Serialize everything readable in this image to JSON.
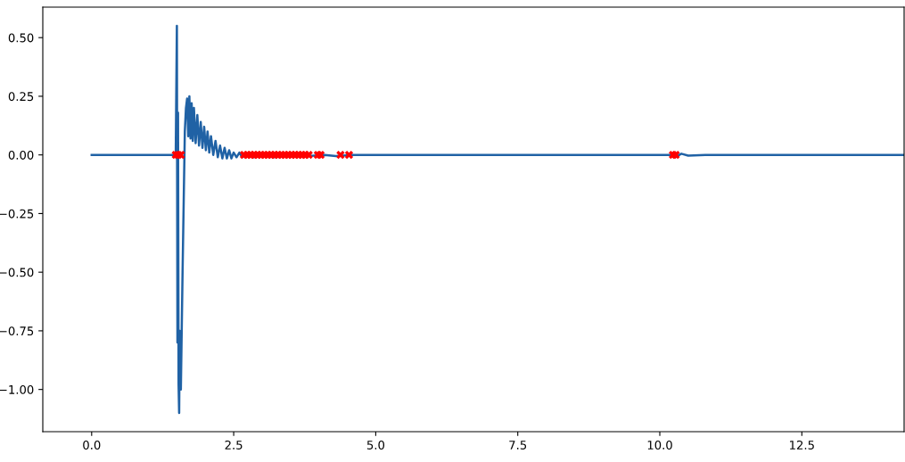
{
  "chart_data": {
    "type": "line",
    "xlim": [
      -0.86,
      14.3
    ],
    "ylim": [
      -1.18,
      0.63
    ],
    "xticks": [
      {
        "value": 0,
        "label": "0.0"
      },
      2.5,
      {
        "value": 5,
        "label": "5.0"
      },
      7.5,
      {
        "value": 10,
        "label": "10.0"
      },
      12.5
    ],
    "yticks": [
      {
        "value": -1,
        "label": "−1.00"
      },
      {
        "value": -0.75,
        "label": "−0.75"
      },
      {
        "value": -0.5,
        "label": "−0.50"
      },
      {
        "value": -0.25,
        "label": "−0.25"
      },
      {
        "value": 0,
        "label": "0.00"
      },
      {
        "value": 0.25,
        "label": "0.25"
      },
      {
        "value": 0.5,
        "label": "0.50"
      }
    ],
    "grid": false,
    "legend": false,
    "series": [
      {
        "color": "#2062a5",
        "marker": "none",
        "line_style": "solid",
        "x": [
          0,
          1.48,
          1.5,
          1.51,
          1.52,
          1.53,
          1.54,
          1.55,
          1.57,
          1.6,
          1.62,
          1.64,
          1.66,
          1.68,
          1.7,
          1.72,
          1.74,
          1.76,
          1.78,
          1.8,
          1.83,
          1.86,
          1.89,
          1.92,
          1.95,
          1.98,
          2.01,
          2.04,
          2.07,
          2.1,
          2.14,
          2.18,
          2.22,
          2.26,
          2.3,
          2.34,
          2.38,
          2.42,
          2.46,
          2.5,
          2.55,
          2.6,
          2.65,
          2.75,
          2.85,
          3.0,
          3.2,
          3.5,
          3.8,
          4.1,
          4.3,
          4.6,
          10.2,
          10.27,
          10.38,
          10.5,
          10.8,
          14.3
        ],
        "values": [
          0,
          0,
          0.55,
          -0.8,
          0.18,
          -0.98,
          -1.1,
          -0.75,
          -1.0,
          -0.5,
          -0.2,
          0.1,
          0.2,
          0.24,
          0.08,
          0.25,
          0.07,
          0.22,
          0.06,
          0.2,
          0.05,
          0.17,
          0.04,
          0.14,
          0.03,
          0.12,
          0.02,
          0.1,
          0.01,
          0.08,
          0.0,
          0.06,
          -0.01,
          0.04,
          -0.015,
          0.03,
          -0.015,
          0.02,
          -0.015,
          0.01,
          -0.01,
          0.01,
          -0.01,
          0.005,
          -0.01,
          0.0,
          -0.01,
          0.0,
          -0.005,
          0.0,
          -0.005,
          0.0,
          0.0,
          -0.01,
          0.005,
          -0.003,
          0,
          0
        ]
      },
      {
        "type": "scatter",
        "color": "#ff0000",
        "marker": "cross",
        "x": [
          1.48,
          1.52,
          1.57,
          2.68,
          2.74,
          2.8,
          2.86,
          2.92,
          2.98,
          3.04,
          3.1,
          3.16,
          3.22,
          3.28,
          3.34,
          3.4,
          3.46,
          3.52,
          3.58,
          3.64,
          3.7,
          3.76,
          3.82,
          3.98,
          4.03,
          4.38,
          4.53,
          10.23,
          10.28
        ],
        "values": [
          0,
          0,
          0,
          0,
          0,
          0,
          0,
          0,
          0,
          0,
          0,
          0,
          0,
          0,
          0,
          0,
          0,
          0,
          0,
          0,
          0,
          0,
          0,
          0,
          0,
          0,
          0,
          0,
          0
        ]
      }
    ]
  }
}
